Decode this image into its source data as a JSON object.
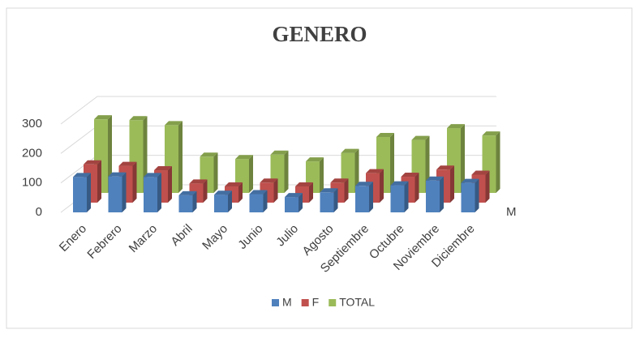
{
  "chart_data": {
    "type": "bar3d",
    "title": "GENERO",
    "categories": [
      "Enero",
      "Febrero",
      "Marzo",
      "Abril",
      "Mayo",
      "Junio",
      "Julio",
      "Agosto",
      "Septiembre",
      "Octubre",
      "Noviembre",
      "Diciembre"
    ],
    "series": [
      {
        "name": "M",
        "color": "#4f81bd",
        "values": [
          120,
          122,
          120,
          58,
          60,
          62,
          52,
          68,
          90,
          92,
          108,
          100
        ]
      },
      {
        "name": "F",
        "color": "#c0504d",
        "values": [
          130,
          125,
          110,
          65,
          55,
          68,
          55,
          68,
          100,
          88,
          112,
          95
        ]
      },
      {
        "name": "TOTAL",
        "color": "#9bbb59",
        "values": [
          250,
          247,
          230,
          123,
          115,
          130,
          107,
          136,
          190,
          180,
          220,
          195
        ]
      }
    ],
    "ylim": [
      0,
      300
    ],
    "yticks": [
      0,
      100,
      200,
      300
    ],
    "grid": true,
    "legend": "bottom"
  }
}
